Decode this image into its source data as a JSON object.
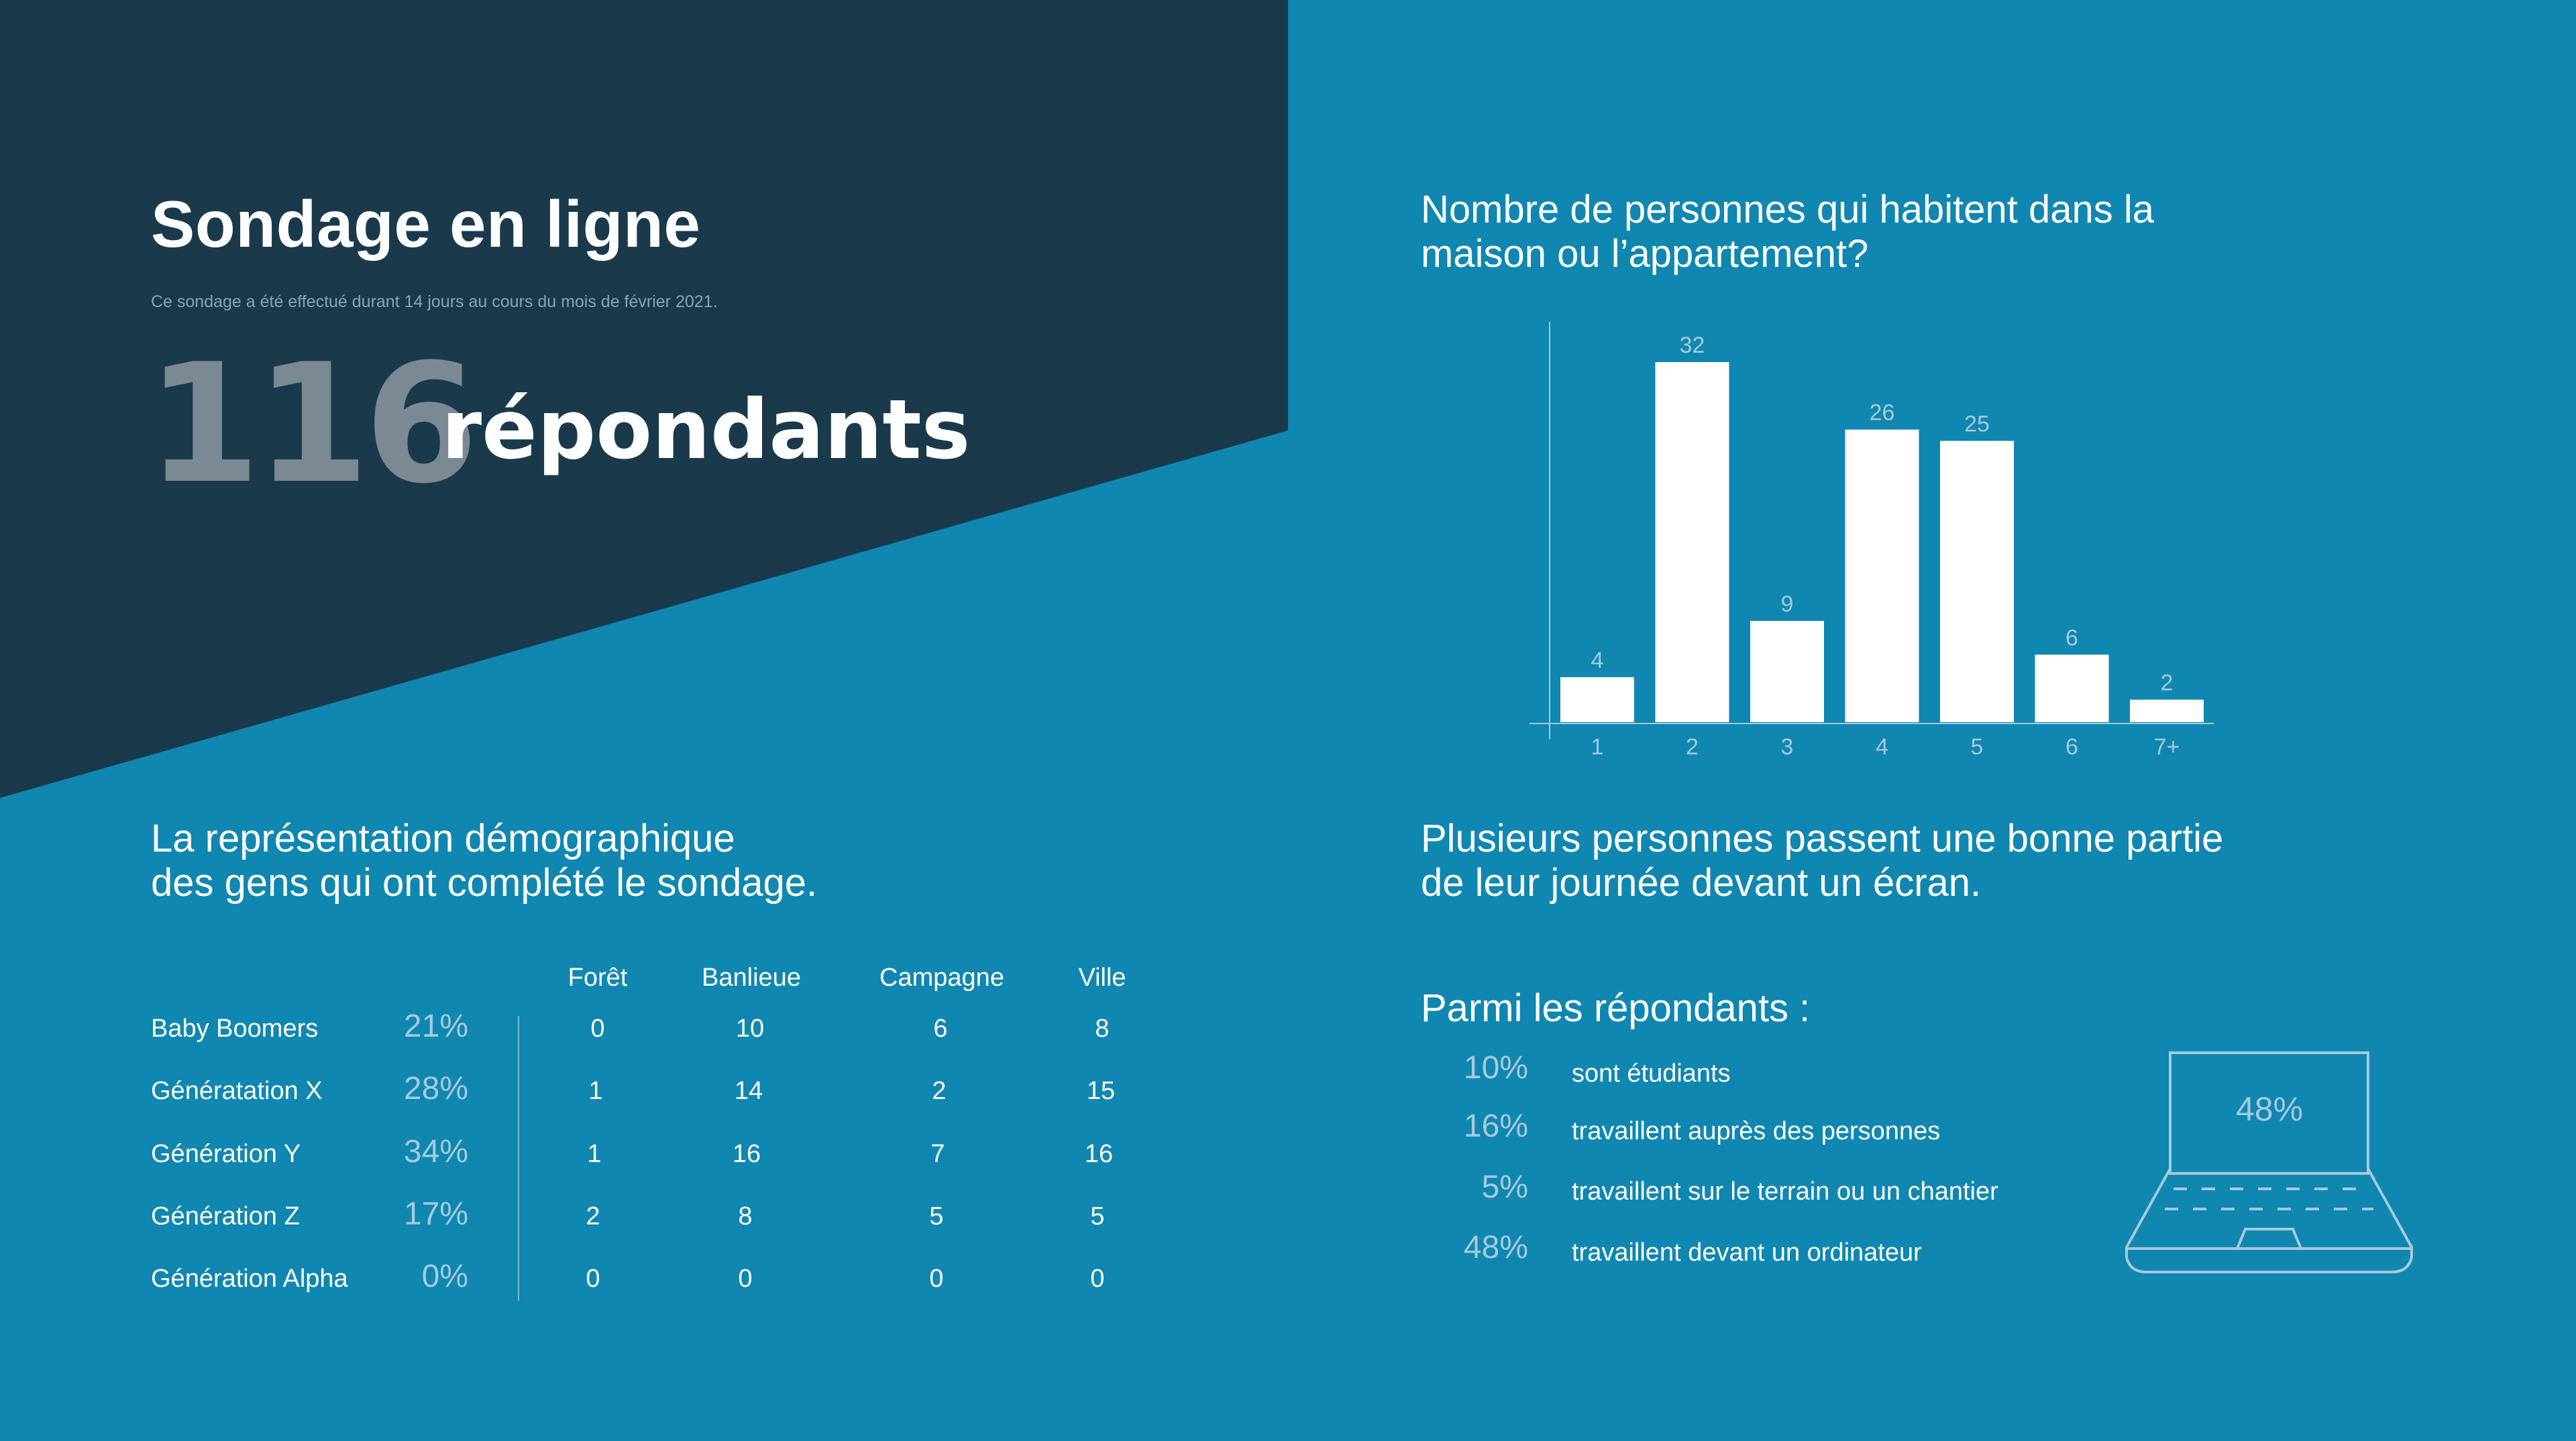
{
  "header": {
    "title": "Sondage en ligne",
    "subtitle": "Ce sondage a été effectué durant 14 jours au cours du mois de février 2021.",
    "respondent_count": "116",
    "respondent_label": "répondants"
  },
  "colors": {
    "background": "#0f87b1",
    "dark_panel": "#1a3a4c",
    "bar": "#ffffff",
    "muted_text": "#a8c9dc"
  },
  "demographics": {
    "heading_line1": "La représentation démographique",
    "heading_line2": "des gens qui ont complété le sondage.",
    "columns": [
      "Forêt",
      "Banlieue",
      "Campagne",
      "Ville"
    ],
    "rows": [
      {
        "label": "Baby Boomers",
        "pct": "21%",
        "values": [
          "0",
          "10",
          "6",
          "8"
        ]
      },
      {
        "label": "Génératation X",
        "pct": "28%",
        "values": [
          "1",
          "14",
          "2",
          "15"
        ]
      },
      {
        "label": "Génération Y",
        "pct": "34%",
        "values": [
          "1",
          "16",
          "7",
          "16"
        ]
      },
      {
        "label": "Génération Z",
        "pct": "17%",
        "values": [
          "2",
          "8",
          "5",
          "5"
        ]
      },
      {
        "label": "Génération Alpha",
        "pct": "0%",
        "values": [
          "0",
          "0",
          "0",
          "0"
        ]
      }
    ]
  },
  "household": {
    "heading_line1": "Nombre de personnes qui habitent dans la",
    "heading_line2": "maison ou l’appartement?"
  },
  "chart_data": {
    "type": "bar",
    "title": "Nombre de personnes qui habitent dans la maison ou l’appartement?",
    "categories": [
      "1",
      "2",
      "3",
      "4",
      "5",
      "6",
      "7+"
    ],
    "values": [
      4,
      32,
      9,
      26,
      25,
      6,
      2
    ],
    "xlabel": "",
    "ylabel": "",
    "grid": false
  },
  "screen": {
    "heading_line1": "Plusieurs personnes passent une bonne partie",
    "heading_line2": "de leur journée devant un écran.",
    "intro": "Parmi les répondants :",
    "items": [
      {
        "pct": "10%",
        "text": "sont étudiants"
      },
      {
        "pct": "16%",
        "text": "travaillent auprès des personnes"
      },
      {
        "pct": "5%",
        "text": "travaillent sur le terrain ou un chantier"
      },
      {
        "pct": "48%",
        "text": "travaillent devant un ordinateur"
      }
    ],
    "laptop_value": "48%",
    "laptop_icon": "laptop-icon"
  }
}
